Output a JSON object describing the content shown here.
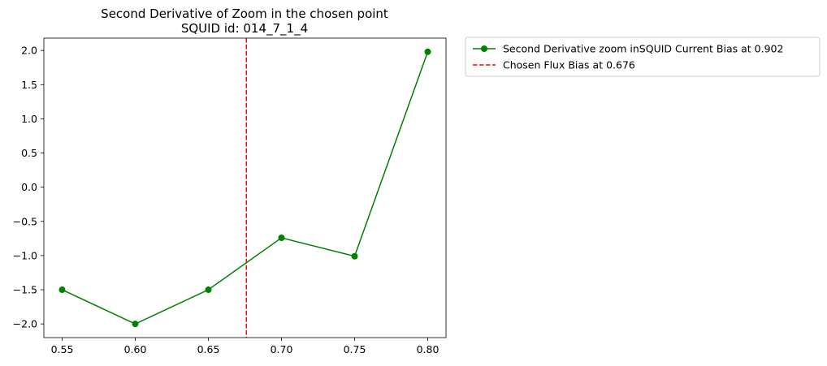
{
  "chart_data": {
    "type": "line",
    "title": "Second Derivative of Zoom in the chosen point",
    "subtitle": "SQUID id: 014_7_1_4",
    "xlabel": "",
    "ylabel": "",
    "xlim": [
      0.5375,
      0.8125
    ],
    "ylim": [
      -2.2,
      2.18
    ],
    "x_ticks": [
      "0.55",
      "0.60",
      "0.65",
      "0.70",
      "0.75",
      "0.80"
    ],
    "y_ticks": [
      "−2.0",
      "−1.5",
      "−1.0",
      "−0.5",
      "0.0",
      "0.5",
      "1.0",
      "1.5",
      "2.0"
    ],
    "grid": false,
    "legend_position": "outside-top-right",
    "series": [
      {
        "name": "Second Derivative zoom inSQUID Current Bias at 0.902",
        "color": "#008000",
        "marker": "circle",
        "x": [
          0.55,
          0.6,
          0.65,
          0.7,
          0.75,
          0.8
        ],
        "y": [
          -1.5,
          -2.0,
          -1.5,
          -0.74,
          -1.01,
          1.98
        ]
      }
    ],
    "vlines": [
      {
        "name": "Chosen Flux Bias at 0.676",
        "x": 0.676,
        "color": "#ff0000",
        "style": "dashed"
      }
    ]
  }
}
